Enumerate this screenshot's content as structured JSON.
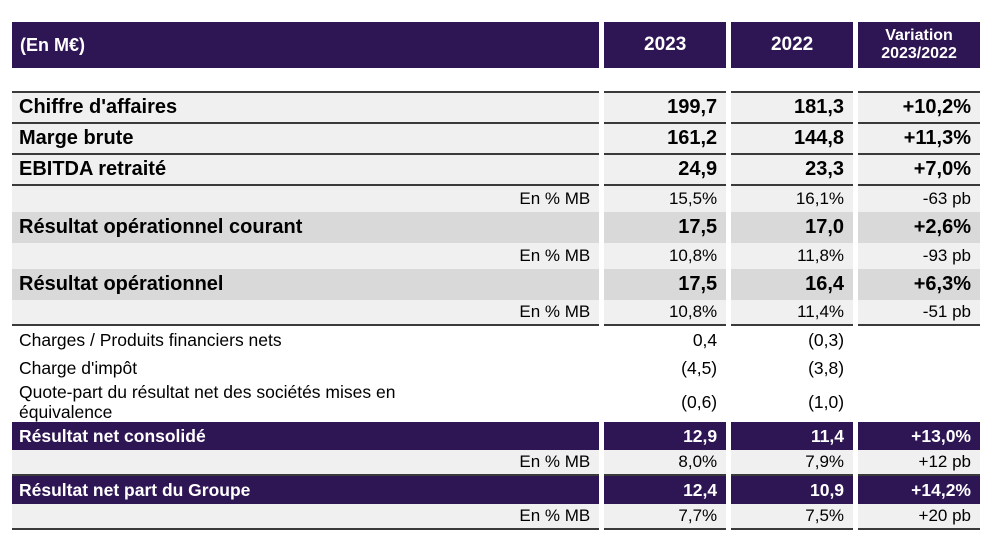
{
  "colors": {
    "purple": "#2e1553",
    "row_gray": "#f0f0f0",
    "row_dark_gray": "#d9d9d9",
    "line": "#3a3a3a",
    "header_text": "#ffffff"
  },
  "header": {
    "unit": "(En M€)",
    "col_2023": "2023",
    "col_2022": "2022",
    "col_variation": "Variation\n2023/2022"
  },
  "rows": [
    {
      "label": "Chiffre d'affaires",
      "v2023": "199,7",
      "v2022": "181,3",
      "variation": "+10,2%",
      "style": "main-gray",
      "line_below": true
    },
    {
      "label": "Marge brute",
      "v2023": "161,2",
      "v2022": "144,8",
      "variation": "+11,3%",
      "style": "main-gray",
      "line_below": true
    },
    {
      "label": "EBITDA retraité",
      "v2023": "24,9",
      "v2022": "23,3",
      "variation": "+7,0%",
      "style": "main-gray",
      "line_below": true
    },
    {
      "label": "En % MB",
      "v2023": "15,5%",
      "v2022": "16,1%",
      "variation": "-63 pb",
      "style": "sub",
      "line_below": false
    },
    {
      "label": "Résultat opérationnel courant",
      "v2023": "17,5",
      "v2022": "17,0",
      "variation": "+2,6%",
      "style": "main-darkgray",
      "line_below": false
    },
    {
      "label": "En % MB",
      "v2023": "10,8%",
      "v2022": "11,8%",
      "variation": "-93 pb",
      "style": "sub",
      "line_below": false
    },
    {
      "label": "Résultat opérationnel",
      "v2023": "17,5",
      "v2022": "16,4",
      "variation": "+6,3%",
      "style": "main-darkgray",
      "line_below": false
    },
    {
      "label": "En % MB",
      "v2023": "10,8%",
      "v2022": "11,4%",
      "variation": "-51 pb",
      "style": "sub",
      "line_below": true
    },
    {
      "label": "Charges / Produits financiers nets",
      "v2023": "0,4",
      "v2022": "(0,3)",
      "variation": "",
      "style": "plain",
      "line_below": false
    },
    {
      "label": "Charge d'impôt",
      "v2023": "(4,5)",
      "v2022": "(3,8)",
      "variation": "",
      "style": "plain",
      "line_below": false
    },
    {
      "label": "Quote-part du résultat net des sociétés mises en\néquivalence",
      "v2023": "(0,6)",
      "v2022": "(1,0)",
      "variation": "",
      "style": "plain",
      "line_below": false
    },
    {
      "label": "Résultat net consolidé",
      "v2023": "12,9",
      "v2022": "11,4",
      "variation": "+13,0%",
      "style": "purple",
      "line_below": false
    },
    {
      "label": "En % MB",
      "v2023": "8,0%",
      "v2022": "7,9%",
      "variation": "+12 pb",
      "style": "sub",
      "line_below": true
    },
    {
      "label": "Résultat net part du Groupe",
      "v2023": "12,4",
      "v2022": "10,9",
      "variation": "+14,2%",
      "style": "purple",
      "line_below": false
    },
    {
      "label": "En % MB",
      "v2023": "7,7%",
      "v2022": "7,5%",
      "variation": "+20 pb",
      "style": "sub",
      "line_below": true
    }
  ]
}
